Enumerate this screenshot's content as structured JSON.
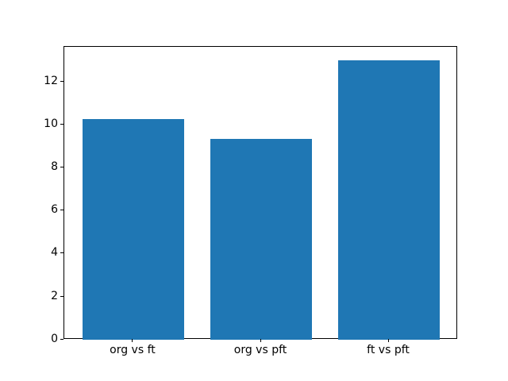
{
  "chart_data": {
    "type": "bar",
    "title": "",
    "xlabel": "",
    "ylabel": "",
    "categories": [
      "org vs ft",
      "org vs pft",
      "ft vs pft"
    ],
    "values": [
      10.27,
      9.35,
      13.0
    ],
    "yticks": [
      0,
      2,
      4,
      6,
      8,
      10,
      12
    ],
    "ytick_labels": [
      "0",
      "2",
      "4",
      "6",
      "8",
      "10",
      "12"
    ],
    "ylim": [
      0,
      13.65
    ],
    "xlim": [
      -0.54,
      2.54
    ],
    "bar_width_fraction": 0.8,
    "bar_color": "#1f77b4",
    "axis_color": "#000000",
    "tick_label_color": "#000000",
    "background_color": "#ffffff",
    "grid": false,
    "legend": null
  }
}
